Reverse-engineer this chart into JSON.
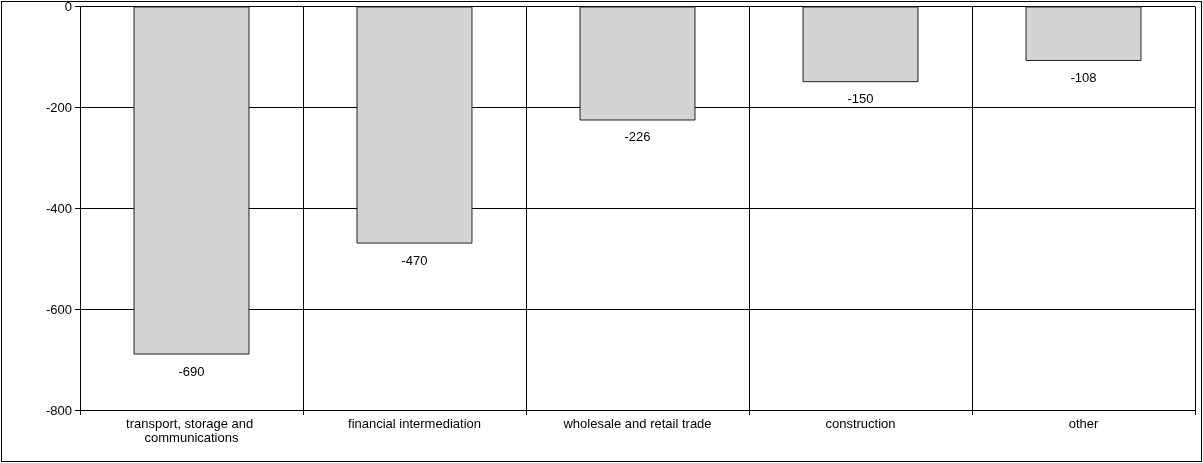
{
  "chart_data": {
    "type": "bar",
    "categories": [
      "transport, storage and communications",
      "financial intermediation",
      "wholesale and retail trade",
      "construction",
      "other"
    ],
    "values": [
      -690,
      -470,
      -226,
      -150,
      -108
    ],
    "color": "#d4d4d4",
    "ylim": [
      -800,
      0
    ],
    "yticks": [
      -800,
      -600,
      -400,
      -200,
      0
    ],
    "grid": true,
    "data_labels": true
  }
}
